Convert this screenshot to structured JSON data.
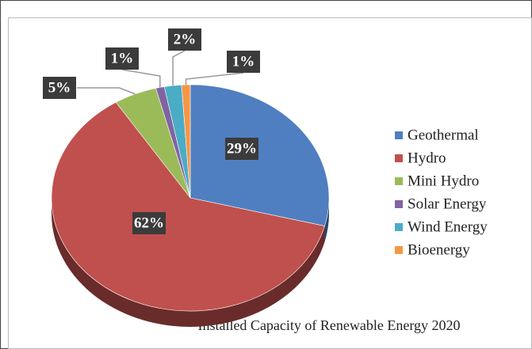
{
  "chart_data": {
    "type": "pie",
    "title": "Installed Capacity of Renewable Energy 2020",
    "categories": [
      "Geothermal",
      "Hydro",
      "Mini Hydro",
      "Solar Energy",
      "Wind Energy",
      "Bioenergy"
    ],
    "values": [
      29,
      62,
      5,
      1,
      2,
      1
    ],
    "value_labels": [
      "29%",
      "62%",
      "5%",
      "1%",
      "2%",
      "1%"
    ],
    "colors": [
      "#4f7fc0",
      "#c0504d",
      "#9bbb59",
      "#8064a2",
      "#4bacc6",
      "#f79646"
    ],
    "legend": "right"
  }
}
